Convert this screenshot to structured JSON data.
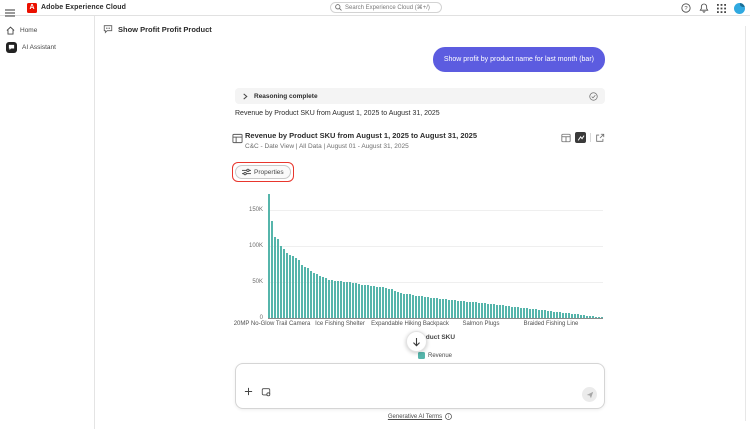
{
  "header": {
    "brand": "Adobe Experience Cloud",
    "search_placeholder": "Search Experience Cloud (⌘+/)"
  },
  "sidebar": {
    "items": [
      {
        "label": "Home"
      },
      {
        "label": "AI Assistant"
      }
    ]
  },
  "chat": {
    "title": "Show Profit Profit Product",
    "user_message": "Show profit by product name for last month (bar)",
    "reasoning_status": "Reasoning complete",
    "assistant_message": "Revenue by Product SKU from August 1, 2025 to August 31, 2025"
  },
  "card": {
    "title": "Revenue by Product SKU from August 1, 2025 to August 31, 2025",
    "subtitle": "C&C - Date View | All Data | August 01 - August 31, 2025",
    "properties_label": "Properties"
  },
  "chart_data": {
    "type": "bar",
    "title": "Revenue by Product SKU from August 1, 2025 to August 31, 2025",
    "xlabel": "Product SKU",
    "ylabel": "Revenue",
    "ylim": [
      0,
      175000
    ],
    "y_ticks": [
      "0",
      "50K",
      "100K",
      "150K"
    ],
    "grid": true,
    "legend_position": "bottom",
    "legend": [
      {
        "label": "Revenue",
        "color": "#56B5AB"
      }
    ],
    "x_tick_labels": [
      "20MP No-Glow Trail Camera",
      "Ice Fishing Shelter",
      "Expandable Hiking Backpack",
      "Salmon Plugs",
      "Braided Fishing Line"
    ],
    "values": [
      172000,
      135000,
      112000,
      110000,
      100000,
      96000,
      91000,
      88000,
      86000,
      84000,
      80000,
      73000,
      71000,
      69000,
      66000,
      63000,
      61000,
      59000,
      57000,
      55000,
      53500,
      52500,
      52000,
      51500,
      51000,
      50500,
      50000,
      49500,
      49000,
      48000,
      47000,
      46500,
      46000,
      45500,
      45000,
      44000,
      43500,
      43000,
      42500,
      42000,
      41000,
      40000,
      38000,
      36000,
      35000,
      34000,
      33500,
      33000,
      32000,
      31000,
      30500,
      30000,
      29500,
      29000,
      28500,
      28000,
      27500,
      27000,
      26500,
      26000,
      25500,
      25000,
      24500,
      24000,
      23500,
      23000,
      22500,
      22300,
      22000,
      21800,
      21500,
      21000,
      20500,
      20000,
      19500,
      19000,
      18500,
      18000,
      17500,
      17000,
      16500,
      16000,
      15500,
      15000,
      14500,
      14000,
      13500,
      13000,
      12500,
      12000,
      11500,
      11000,
      10500,
      10000,
      9500,
      9000,
      8500,
      8000,
      7500,
      7000,
      6500,
      6000,
      5500,
      5000,
      4500,
      4000,
      3500,
      3000,
      2500,
      2000,
      1500,
      1000
    ]
  },
  "composer": {
    "input_value": "",
    "terms_label": "Generative AI Terms"
  },
  "colors": {
    "user_bubble": "#5C5CE0",
    "bar": "#56B5AB",
    "focus_ring": "#E8362D",
    "adobe_red": "#EB1000",
    "avatar": "#30A9E0"
  },
  "icons": {
    "hamburger": "menu",
    "search": "magnifier",
    "help": "?",
    "notifications": "bell",
    "app-switcher": "grid-dots",
    "home": "house",
    "ai-assistant": "chat-sparkle",
    "chat-history": "chat-bubble-refresh",
    "chevron": ">",
    "reasoning-done": "check-circle",
    "freeform-table": "table",
    "view-table": "table",
    "view-chart": "line-chart",
    "open-in-new": "arrow-out-of-box",
    "properties": "sliders",
    "scroll-down": "arrow-down",
    "add": "+",
    "capture": "screen-capture",
    "send": "paper-plane",
    "info": "i-circle"
  }
}
